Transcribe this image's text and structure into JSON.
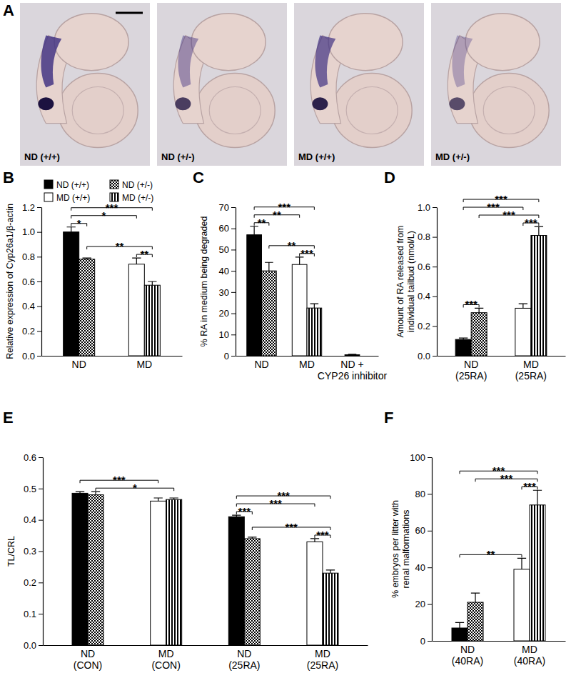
{
  "panel_a": {
    "panel_label": "A",
    "images": [
      "ND (+/+)",
      "ND (+/-)",
      "MD (+/+)",
      "MD (+/-)"
    ]
  },
  "chart_data": [
    {
      "type": "bar",
      "panel_label": "B",
      "y_label": "Relative expression of Cyp26a1/β-actin",
      "categories": [
        "ND",
        "MD"
      ],
      "ylim": [
        0,
        1.2
      ],
      "yticks": [
        {
          "value": 0,
          "label": "0.0"
        },
        0.2,
        0.4,
        0.6,
        0.8,
        {
          "value": 1,
          "label": "1.0"
        },
        1.2
      ],
      "legend": "top",
      "series": [
        {
          "name": "ND (+/+)",
          "color": "#000000",
          "marker": "solid",
          "values": [
            1.0,
            null
          ],
          "errors": [
            0.04,
            null
          ]
        },
        {
          "name": "ND (+/-)",
          "color": "#000000",
          "marker": "checker",
          "values": [
            0.78,
            null
          ],
          "errors": [
            0.01,
            null
          ]
        },
        {
          "name": "MD (+/+)",
          "color": "#ffffff",
          "marker": "open",
          "values": [
            null,
            0.74
          ],
          "errors": [
            null,
            0.05
          ]
        },
        {
          "name": "MD (+/-)",
          "color": "#000000",
          "marker": "stripes",
          "values": [
            null,
            0.57
          ],
          "errors": [
            null,
            0.03
          ]
        }
      ],
      "significance": [
        {
          "bars": [
            [
              0,
              0
            ],
            [
              1,
              0
            ]
          ],
          "label": "*"
        },
        {
          "bars": [
            [
              2,
              1
            ],
            [
              3,
              1
            ]
          ],
          "label": "**"
        },
        {
          "bars": [
            [
              1,
              0
            ],
            [
              3,
              1
            ]
          ],
          "label": "**"
        },
        {
          "bars": [
            [
              0,
              0
            ],
            [
              2,
              1
            ]
          ],
          "label": "*"
        },
        {
          "bars": [
            [
              0,
              0
            ],
            [
              3,
              1
            ]
          ],
          "label": "***"
        }
      ]
    },
    {
      "type": "bar",
      "panel_label": "C",
      "y_label": "% RA in medium being degraded",
      "categories": [
        "ND",
        "MD",
        "ND +\nCYP26 inhibitor"
      ],
      "ylim": [
        0,
        70
      ],
      "yticks": [
        0,
        10,
        20,
        30,
        40,
        50,
        60,
        70
      ],
      "series": [
        {
          "color": "#000000",
          "marker": "solid",
          "values": [
            57,
            null,
            0.5
          ],
          "errors": [
            4,
            null,
            0.2
          ]
        },
        {
          "color": "#000000",
          "marker": "checker",
          "values": [
            40,
            null,
            null
          ],
          "errors": [
            4,
            null,
            null
          ]
        },
        {
          "color": "#ffffff",
          "marker": "open",
          "values": [
            null,
            43,
            null
          ],
          "errors": [
            null,
            3.5,
            null
          ]
        },
        {
          "color": "#000000",
          "marker": "stripes",
          "values": [
            null,
            22.5,
            null
          ],
          "errors": [
            null,
            2,
            null
          ]
        }
      ],
      "significance": [
        {
          "bars": [
            [
              0,
              0
            ],
            [
              1,
              0
            ]
          ],
          "label": "**"
        },
        {
          "bars": [
            [
              2,
              1
            ],
            [
              3,
              1
            ]
          ],
          "label": "***"
        },
        {
          "bars": [
            [
              1,
              0
            ],
            [
              3,
              1
            ]
          ],
          "label": "**"
        },
        {
          "bars": [
            [
              0,
              0
            ],
            [
              2,
              1
            ]
          ],
          "label": "**"
        },
        {
          "bars": [
            [
              0,
              0
            ],
            [
              3,
              1
            ]
          ],
          "label": "***"
        }
      ]
    },
    {
      "type": "bar",
      "panel_label": "D",
      "y_label": "Amount of RA released from\nindividual tailbud (nmol/L)",
      "categories": [
        "ND\n(25RA)",
        "MD\n(25RA)"
      ],
      "ylim": [
        0,
        1.0
      ],
      "yticks": [
        {
          "value": 0,
          "label": "0.0"
        },
        0.2,
        0.4,
        0.6,
        0.8,
        {
          "value": 1,
          "label": "1.0"
        }
      ],
      "series": [
        {
          "color": "#000000",
          "marker": "solid",
          "values": [
            0.11,
            null
          ],
          "errors": [
            0.01,
            null
          ]
        },
        {
          "color": "#000000",
          "marker": "checker",
          "values": [
            0.29,
            null
          ],
          "errors": [
            0.03,
            null
          ]
        },
        {
          "color": "#ffffff",
          "marker": "open",
          "values": [
            null,
            0.32
          ],
          "errors": [
            null,
            0.03
          ]
        },
        {
          "color": "#000000",
          "marker": "stripes",
          "values": [
            null,
            0.81
          ],
          "errors": [
            null,
            0.06
          ]
        }
      ],
      "significance": [
        {
          "bars": [
            [
              0,
              0
            ],
            [
              1,
              0
            ]
          ],
          "label": "***"
        },
        {
          "bars": [
            [
              2,
              1
            ],
            [
              3,
              1
            ]
          ],
          "label": "***"
        },
        {
          "bars": [
            [
              1,
              0
            ],
            [
              3,
              1
            ]
          ],
          "label": "***"
        },
        {
          "bars": [
            [
              0,
              0
            ],
            [
              2,
              1
            ]
          ],
          "label": "***"
        },
        {
          "bars": [
            [
              0,
              0
            ],
            [
              3,
              1
            ]
          ],
          "label": "***"
        }
      ]
    },
    {
      "type": "bar",
      "panel_label": "E",
      "y_label": "TL/CRL",
      "categories": [
        "ND\n(CON)",
        "MD\n(CON)",
        "ND\n(25RA)",
        "MD\n(25RA)"
      ],
      "ylim": [
        0,
        0.6
      ],
      "yticks": [
        {
          "value": 0,
          "label": "0.0"
        },
        0.1,
        0.2,
        0.3,
        0.4,
        0.5,
        0.6
      ],
      "series": [
        {
          "color": "#000000",
          "marker": "solid",
          "values": [
            0.485,
            null,
            0.41,
            null
          ],
          "errors": [
            0.005,
            null,
            0.005,
            null
          ]
        },
        {
          "color": "#000000",
          "marker": "checker",
          "values": [
            0.48,
            null,
            0.34,
            null
          ],
          "errors": [
            0.01,
            null,
            0.005,
            null
          ]
        },
        {
          "color": "#ffffff",
          "marker": "open",
          "values": [
            null,
            0.46,
            null,
            0.33
          ],
          "errors": [
            null,
            0.01,
            null,
            0.01
          ]
        },
        {
          "color": "#000000",
          "marker": "stripes",
          "values": [
            null,
            0.465,
            null,
            0.23
          ],
          "errors": [
            null,
            0.005,
            null,
            0.01
          ]
        }
      ],
      "significance": [
        {
          "bars": [
            [
              1,
              0
            ],
            [
              3,
              1
            ]
          ],
          "label": "*"
        },
        {
          "bars": [
            [
              0,
              0
            ],
            [
              2,
              1
            ]
          ],
          "label": "***"
        },
        {
          "bars": [
            [
              0,
              2
            ],
            [
              1,
              2
            ]
          ],
          "label": "***"
        },
        {
          "bars": [
            [
              2,
              3
            ],
            [
              3,
              3
            ]
          ],
          "label": "***"
        },
        {
          "bars": [
            [
              1,
              2
            ],
            [
              3,
              3
            ]
          ],
          "label": "***"
        },
        {
          "bars": [
            [
              0,
              2
            ],
            [
              2,
              3
            ]
          ],
          "label": "***"
        },
        {
          "bars": [
            [
              0,
              2
            ],
            [
              3,
              3
            ]
          ],
          "label": "***"
        }
      ]
    },
    {
      "type": "bar",
      "panel_label": "F",
      "y_label": "% embryos per litter with\nrenal malformations",
      "categories": [
        "ND\n(40RA)",
        "MD\n(40RA)"
      ],
      "ylim": [
        0,
        100
      ],
      "yticks": [
        0,
        20,
        40,
        60,
        80,
        100
      ],
      "series": [
        {
          "color": "#000000",
          "marker": "solid",
          "values": [
            7,
            null
          ],
          "errors": [
            3,
            null
          ]
        },
        {
          "color": "#000000",
          "marker": "checker",
          "values": [
            21,
            null
          ],
          "errors": [
            5,
            null
          ]
        },
        {
          "color": "#ffffff",
          "marker": "open",
          "values": [
            null,
            39
          ],
          "errors": [
            null,
            6
          ]
        },
        {
          "color": "#000000",
          "marker": "stripes",
          "values": [
            null,
            74
          ],
          "errors": [
            null,
            8
          ]
        }
      ],
      "significance": [
        {
          "bars": [
            [
              2,
              1
            ],
            [
              3,
              1
            ]
          ],
          "label": "***"
        },
        {
          "bars": [
            [
              0,
              0
            ],
            [
              2,
              1
            ]
          ],
          "label": "**"
        },
        {
          "bars": [
            [
              1,
              0
            ],
            [
              3,
              1
            ]
          ],
          "label": "***"
        },
        {
          "bars": [
            [
              0,
              0
            ],
            [
              3,
              1
            ]
          ],
          "label": "***"
        }
      ]
    }
  ]
}
